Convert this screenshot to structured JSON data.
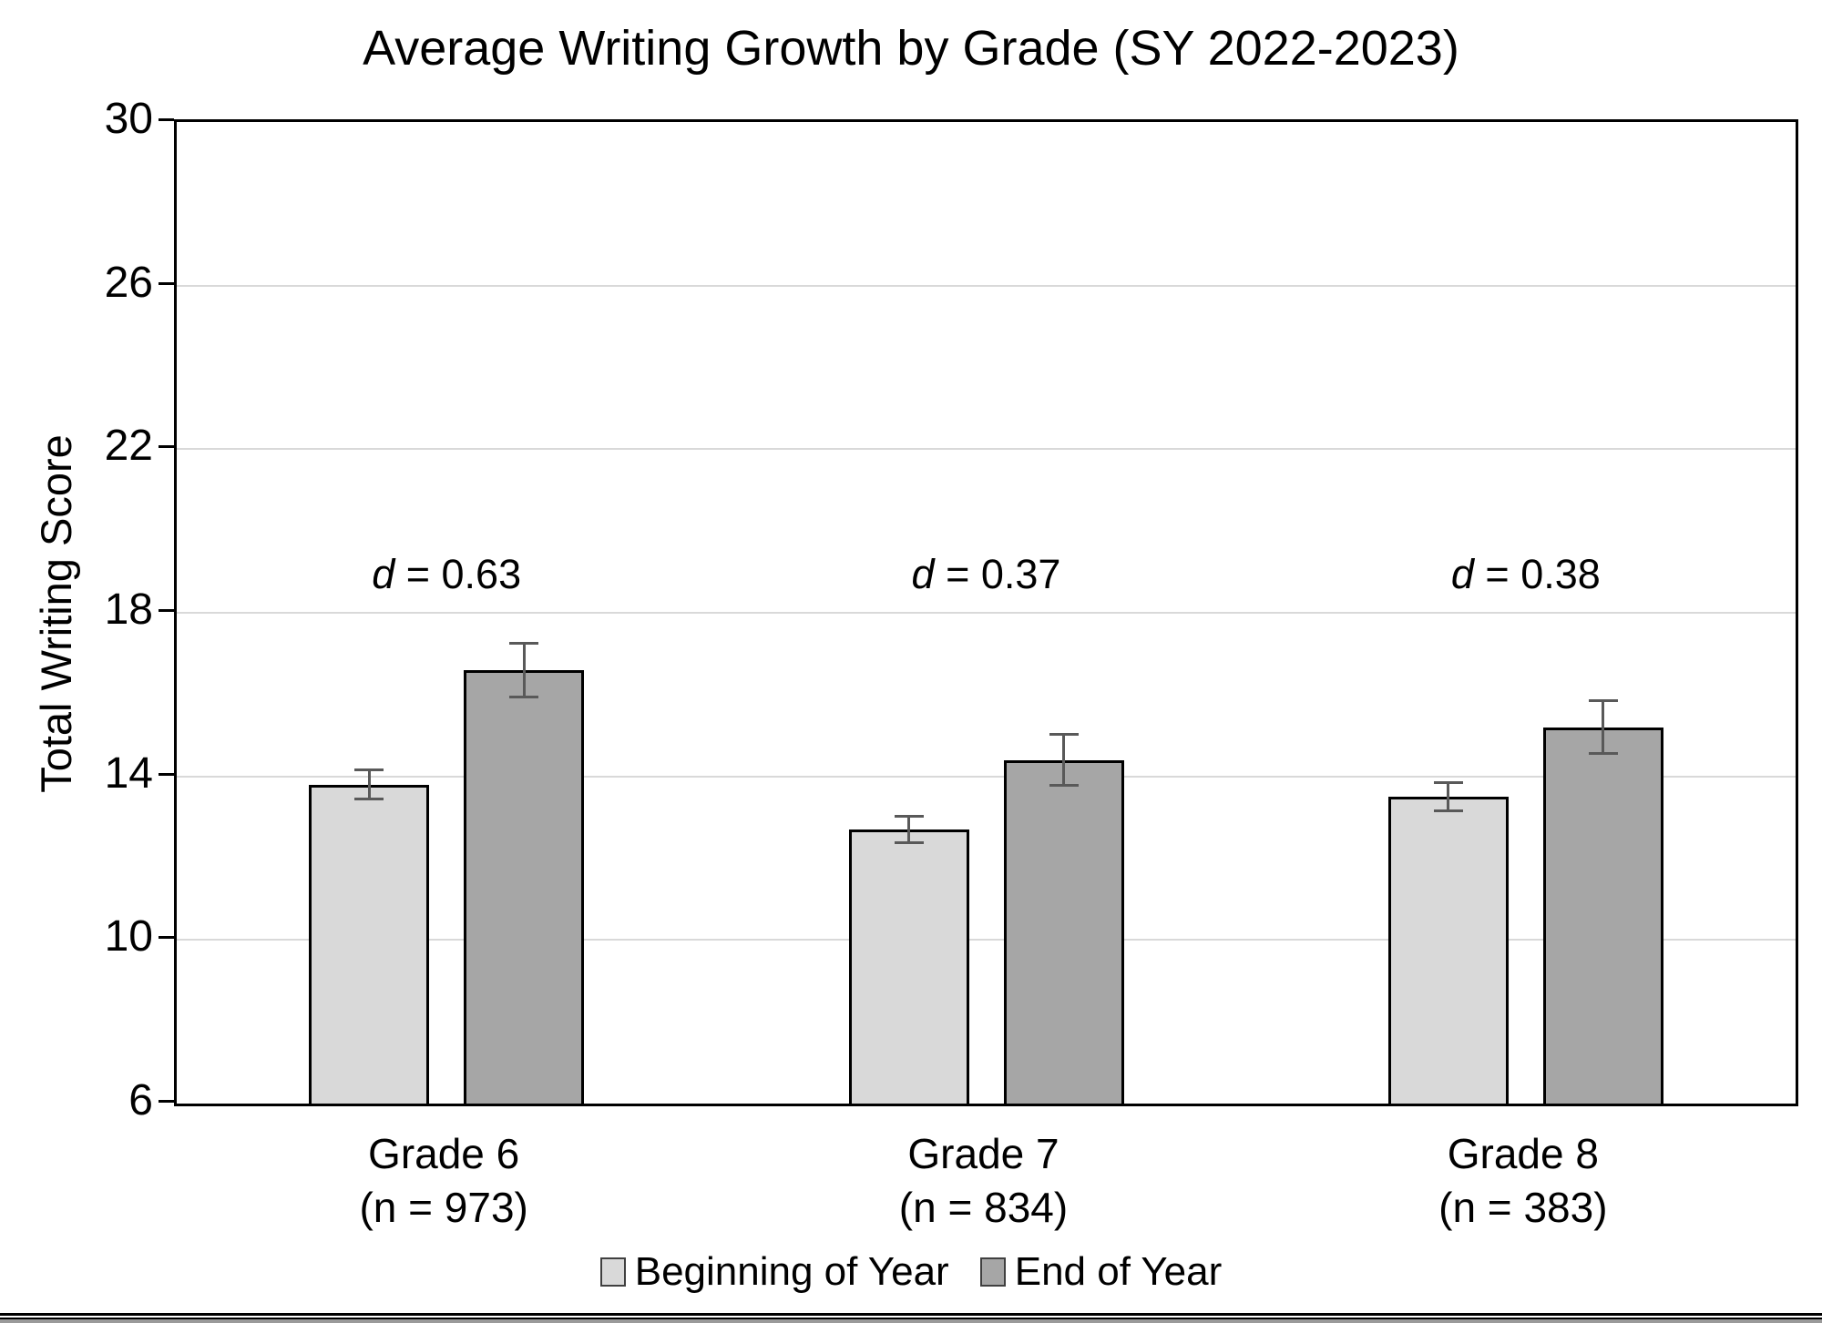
{
  "chart_data": {
    "type": "bar",
    "title": "Average Writing Growth by Grade (SY 2022-2023)",
    "xlabel": "",
    "ylabel": "Total Writing Score",
    "ylim": [
      6,
      30
    ],
    "yticks": [
      6,
      10,
      14,
      18,
      22,
      26,
      30
    ],
    "grid": true,
    "legend_position": "bottom",
    "categories": [
      "Grade 6",
      "Grade 7",
      "Grade 8"
    ],
    "category_sublabels": [
      "(n = 973)",
      "(n = 834)",
      "(n = 383)"
    ],
    "annotations": [
      "d = 0.63",
      "d = 0.37",
      "d = 0.38"
    ],
    "series": [
      {
        "name": "Beginning of Year",
        "color": "#d9d9d9",
        "values": [
          13.8,
          12.7,
          13.5
        ],
        "errors": [
          0.35,
          0.33,
          0.35
        ]
      },
      {
        "name": "End of Year",
        "color": "#a6a6a6",
        "values": [
          16.6,
          14.4,
          15.2
        ],
        "errors": [
          0.65,
          0.63,
          0.65
        ]
      }
    ]
  },
  "colors": {
    "bar_border": "#000000",
    "error_bar": "#595959",
    "gridline": "#d9d9d9",
    "axis": "#000000",
    "background": "#ffffff"
  }
}
